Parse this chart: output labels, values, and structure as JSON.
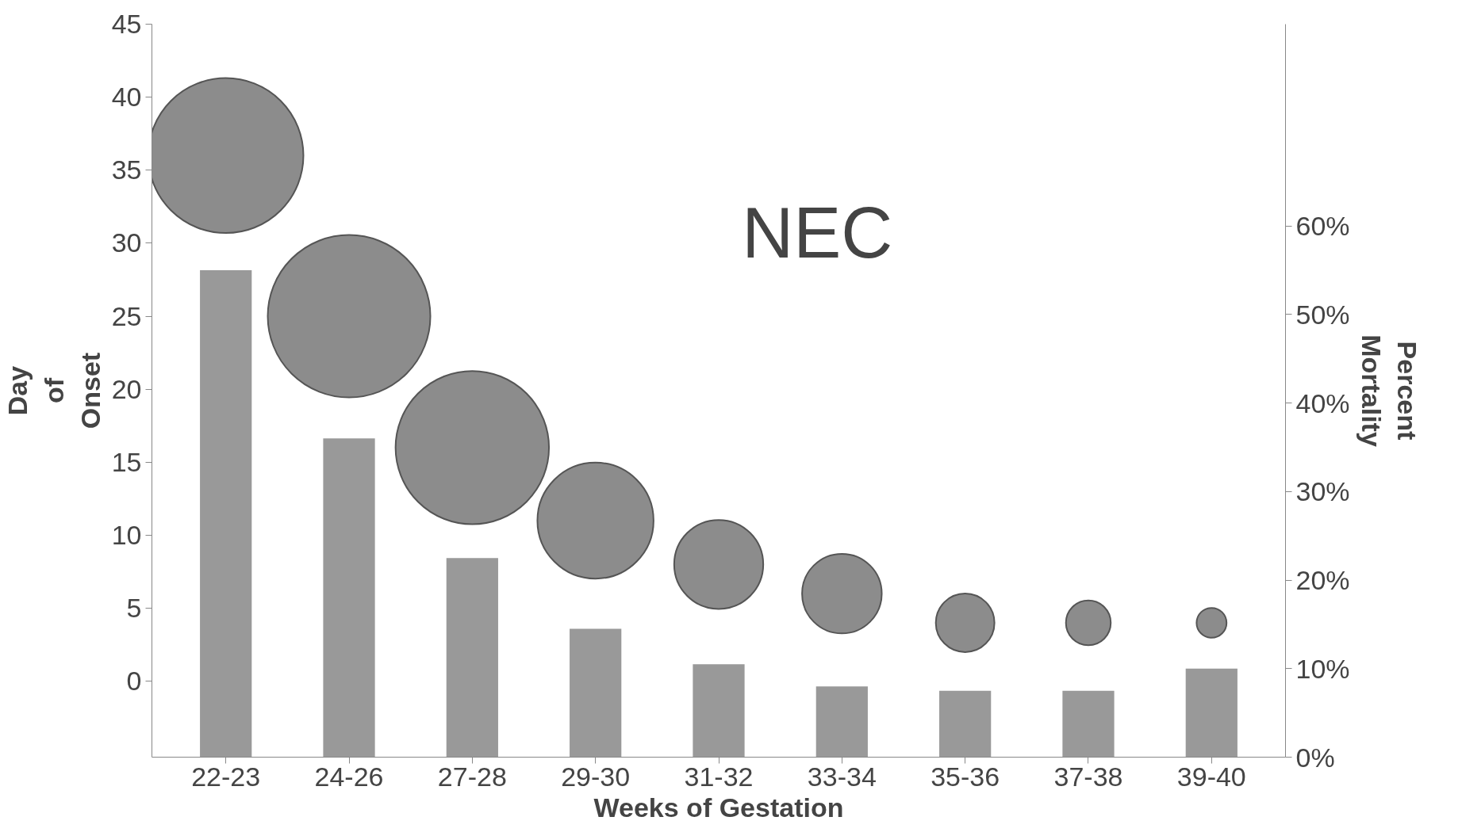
{
  "chart_data": {
    "type": "bubble",
    "xlabel": "Weeks of Gestation",
    "ylabel": "Day\nof\nOnset",
    "y2label": "Percent\nMortality",
    "annotations": [
      "NEC"
    ],
    "categories": [
      "22-23",
      "24-26",
      "27-28",
      "29-30",
      "31-32",
      "33-34",
      "35-36",
      "37-38",
      "39-40"
    ],
    "series": [
      {
        "type": "bar",
        "axis": "y2",
        "color": "#999999",
        "values": [
          55,
          36,
          22.5,
          14.5,
          10.5,
          8,
          7.5,
          7.5,
          10
        ]
      },
      {
        "color": "#8c8c8c",
        "values": [
          36,
          25,
          16,
          11,
          8,
          6,
          4,
          4,
          4
        ],
        "sizes": [
          0.91,
          1,
          0.89,
          0.51,
          0.3,
          0.24,
          0.13,
          0.076,
          0.034
        ]
      }
    ],
    "relative": false,
    "ylim": [
      -5.2,
      45
    ],
    "yticks": [
      0,
      5,
      10,
      15,
      20,
      25,
      30,
      35,
      40,
      45
    ],
    "y2lim": [
      0,
      82.8
    ],
    "y2ticks": [
      {
        "value": 0,
        "label": "0%"
      },
      {
        "value": 10,
        "label": "10%"
      },
      {
        "value": 20,
        "label": "20%"
      },
      {
        "value": 30,
        "label": "30%"
      },
      {
        "value": 40,
        "label": "40%"
      },
      {
        "value": 50,
        "label": "50%"
      },
      {
        "value": 60,
        "label": "60%"
      }
    ],
    "grid": false
  }
}
